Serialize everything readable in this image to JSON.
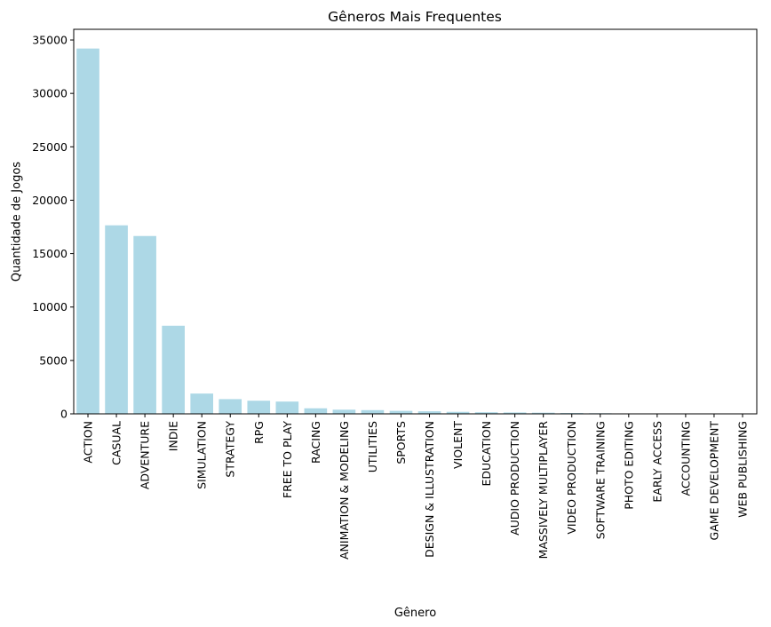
{
  "chart_data": {
    "type": "bar",
    "title": "Gêneros Mais Frequentes",
    "xlabel": "Gênero",
    "ylabel": "Quantidade de Jogos",
    "categories": [
      "ACTION",
      "CASUAL",
      "ADVENTURE",
      "INDIE",
      "SIMULATION",
      "STRATEGY",
      "RPG",
      "FREE TO PLAY",
      "RACING",
      "ANIMATION & MODELING",
      "UTILITIES",
      "SPORTS",
      "DESIGN & ILLUSTRATION",
      "VIOLENT",
      "EDUCATION",
      "AUDIO PRODUCTION",
      "MASSIVELY MULTIPLAYER",
      "VIDEO PRODUCTION",
      "SOFTWARE TRAINING",
      "PHOTO EDITING",
      "EARLY ACCESS",
      "ACCOUNTING",
      "GAME DEVELOPMENT",
      "WEB PUBLISHING"
    ],
    "values": [
      34200,
      17650,
      16650,
      8250,
      1900,
      1380,
      1230,
      1150,
      520,
      390,
      350,
      280,
      240,
      190,
      150,
      130,
      110,
      80,
      60,
      35,
      25,
      15,
      10,
      6
    ],
    "ylim": [
      0,
      36000
    ],
    "yticks": [
      0,
      5000,
      10000,
      15000,
      20000,
      25000,
      30000,
      35000
    ],
    "grid": false,
    "legend": "none",
    "bar_color": "#add8e6"
  }
}
